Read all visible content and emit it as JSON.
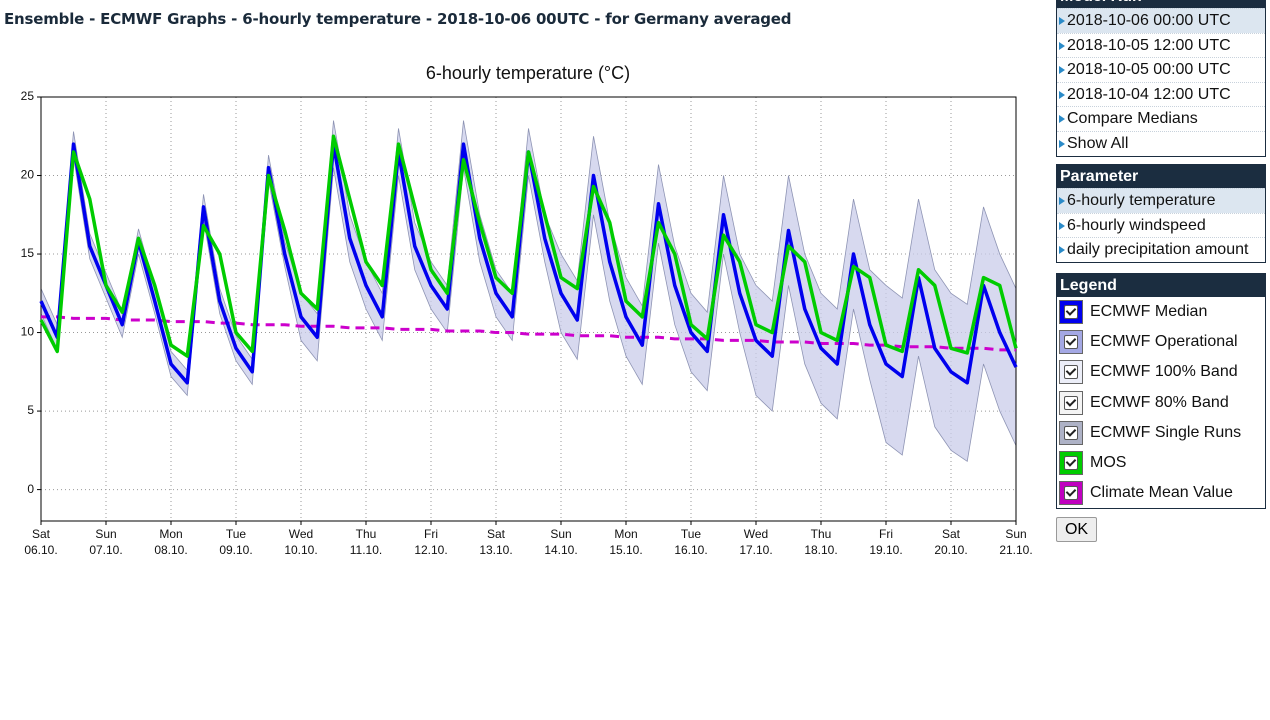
{
  "header": {
    "title": "Ensemble - ECMWF Graphs - 6-hourly temperature - 2018-10-06 00UTC - for Germany averaged"
  },
  "chart_data": {
    "type": "line",
    "title": "6-hourly temperature (°C)",
    "categories": [
      {
        "weekday": "Sat",
        "date": "06.10."
      },
      null,
      null,
      null,
      {
        "weekday": "Sun",
        "date": "07.10."
      },
      null,
      null,
      null,
      {
        "weekday": "Mon",
        "date": "08.10."
      },
      null,
      null,
      null,
      {
        "weekday": "Tue",
        "date": "09.10."
      },
      null,
      null,
      null,
      {
        "weekday": "Wed",
        "date": "10.10."
      },
      null,
      null,
      null,
      {
        "weekday": "Thu",
        "date": "11.10."
      },
      null,
      null,
      null,
      {
        "weekday": "Fri",
        "date": "12.10."
      },
      null,
      null,
      null,
      {
        "weekday": "Sat",
        "date": "13.10."
      },
      null,
      null,
      null,
      {
        "weekday": "Sun",
        "date": "14.10."
      },
      null,
      null,
      null,
      {
        "weekday": "Mon",
        "date": "15.10."
      },
      null,
      null,
      null,
      {
        "weekday": "Tue",
        "date": "16.10."
      },
      null,
      null,
      null,
      {
        "weekday": "Wed",
        "date": "17.10."
      },
      null,
      null,
      null,
      {
        "weekday": "Thu",
        "date": "18.10."
      },
      null,
      null,
      null,
      {
        "weekday": "Fri",
        "date": "19.10."
      },
      null,
      null,
      null,
      {
        "weekday": "Sat",
        "date": "20.10."
      },
      null,
      null,
      null,
      {
        "weekday": "Sun",
        "date": "21.10."
      }
    ],
    "ylim": [
      -2,
      25
    ],
    "yticks": [
      0,
      5,
      10,
      15,
      20,
      25
    ],
    "grid": true,
    "band": {
      "color": "#c9cce9",
      "high": [
        12.8,
        10.5,
        22.8,
        16.3,
        13.8,
        11.3,
        16.6,
        12.8,
        8.8,
        7.6,
        18.8,
        12.8,
        9.8,
        8.3,
        21.3,
        15.8,
        12.5,
        11.2,
        23.5,
        17.5,
        14.5,
        12.5,
        23,
        17,
        14.5,
        13,
        23.5,
        17.5,
        14,
        12.5,
        23,
        17.5,
        15,
        13.3,
        22.5,
        17,
        13.5,
        11.7,
        20.7,
        15.5,
        12.5,
        11.3,
        20,
        15,
        13,
        12,
        20,
        15,
        12.5,
        11.5,
        18.5,
        14,
        13,
        12.2,
        18.5,
        14,
        12.5,
        11.8,
        18,
        15,
        12.8
      ],
      "low": [
        11.2,
        8.9,
        21.2,
        14.7,
        12.2,
        9.7,
        15,
        11.2,
        7.2,
        6,
        17.2,
        11.2,
        8.2,
        6.7,
        19.7,
        14.2,
        9.5,
        8.2,
        20.5,
        14.5,
        11.5,
        9.5,
        20,
        14,
        11.5,
        10,
        20.5,
        14.5,
        11,
        9.5,
        20,
        14.5,
        10,
        8.3,
        17.5,
        12,
        8.5,
        6.7,
        15.7,
        10.5,
        7.5,
        6.3,
        15,
        10,
        6,
        5,
        13,
        8,
        5.5,
        4.5,
        11.5,
        7,
        3,
        2.2,
        8.5,
        4,
        2.5,
        1.8,
        8,
        5,
        2.8
      ]
    },
    "series": [
      {
        "color": "#cc00cc",
        "dashed": true,
        "width": 3,
        "values": [
          11.0,
          11.0,
          10.9,
          10.9,
          10.9,
          10.8,
          10.8,
          10.8,
          10.7,
          10.7,
          10.7,
          10.6,
          10.6,
          10.5,
          10.5,
          10.5,
          10.4,
          10.4,
          10.4,
          10.3,
          10.3,
          10.3,
          10.2,
          10.2,
          10.2,
          10.1,
          10.1,
          10.1,
          10.0,
          10.0,
          9.9,
          9.9,
          9.9,
          9.8,
          9.8,
          9.8,
          9.7,
          9.7,
          9.7,
          9.6,
          9.6,
          9.6,
          9.5,
          9.5,
          9.5,
          9.4,
          9.4,
          9.4,
          9.3,
          9.3,
          9.3,
          9.2,
          9.2,
          9.1,
          9.1,
          9.1,
          9.0,
          9.0,
          9.0,
          8.9,
          8.9
        ]
      },
      {
        "color": "#0000ee",
        "width": 3.5,
        "values": [
          12,
          9.7,
          22,
          15.5,
          13,
          10.5,
          15.8,
          12,
          8,
          6.8,
          18,
          12,
          9,
          7.5,
          20.5,
          15,
          11,
          9.7,
          22,
          16,
          13,
          11,
          21.5,
          15.5,
          13,
          11.5,
          22,
          16,
          12.5,
          11,
          21.5,
          16,
          12.5,
          10.8,
          20,
          14.5,
          11,
          9.2,
          18.2,
          13,
          10,
          8.8,
          17.5,
          12.5,
          9.5,
          8.5,
          16.5,
          11.5,
          9,
          8,
          15,
          10.5,
          8,
          7.2,
          13.5,
          9,
          7.5,
          6.8,
          13,
          10,
          7.8
        ]
      },
      {
        "color": "#00cc00",
        "width": 3.5,
        "values": [
          10.8,
          8.8,
          21.5,
          18.5,
          13,
          11.3,
          16,
          13,
          9.2,
          8.5,
          16.8,
          15,
          10,
          8.8,
          20,
          16.5,
          12.5,
          11.5,
          22.5,
          18.5,
          14.5,
          13,
          22,
          18,
          14,
          12.5,
          21,
          17,
          13.5,
          12.5,
          21.5,
          17.5,
          13.5,
          12.8,
          19.3,
          17,
          12,
          11,
          17,
          15,
          10.5,
          9.6,
          16.2,
          14.5,
          10.5,
          10,
          15.5,
          14.5,
          10,
          9.5,
          14.2,
          13.5,
          9.2,
          8.8,
          14,
          13,
          9,
          8.7,
          13.5,
          13,
          9
        ]
      }
    ]
  },
  "sidebar": {
    "model_run": {
      "title": "Model Run",
      "items": [
        "2018-10-06 00:00 UTC",
        "2018-10-05 12:00 UTC",
        "2018-10-05 00:00 UTC",
        "2018-10-04 12:00 UTC",
        "Compare Medians",
        "Show All"
      ]
    },
    "parameter": {
      "title": "Parameter",
      "items": [
        "6-hourly temperature",
        "6-hourly windspeed",
        "daily precipitation amount"
      ]
    },
    "legend": {
      "title": "Legend",
      "items": [
        {
          "label": "ECMWF Median",
          "color": "#0000ee"
        },
        {
          "label": "ECMWF Operational",
          "color": "#a4a8e4"
        },
        {
          "label": "ECMWF 100% Band",
          "color": "#eceef8"
        },
        {
          "label": "ECMWF 80% Band",
          "color": "#f4f4f4"
        },
        {
          "label": "ECMWF Single Runs",
          "color": "#aeb2c6"
        },
        {
          "label": "MOS",
          "color": "#00cc00"
        },
        {
          "label": "Climate Mean Value",
          "color": "#c000c0"
        }
      ]
    },
    "button": "OK"
  }
}
